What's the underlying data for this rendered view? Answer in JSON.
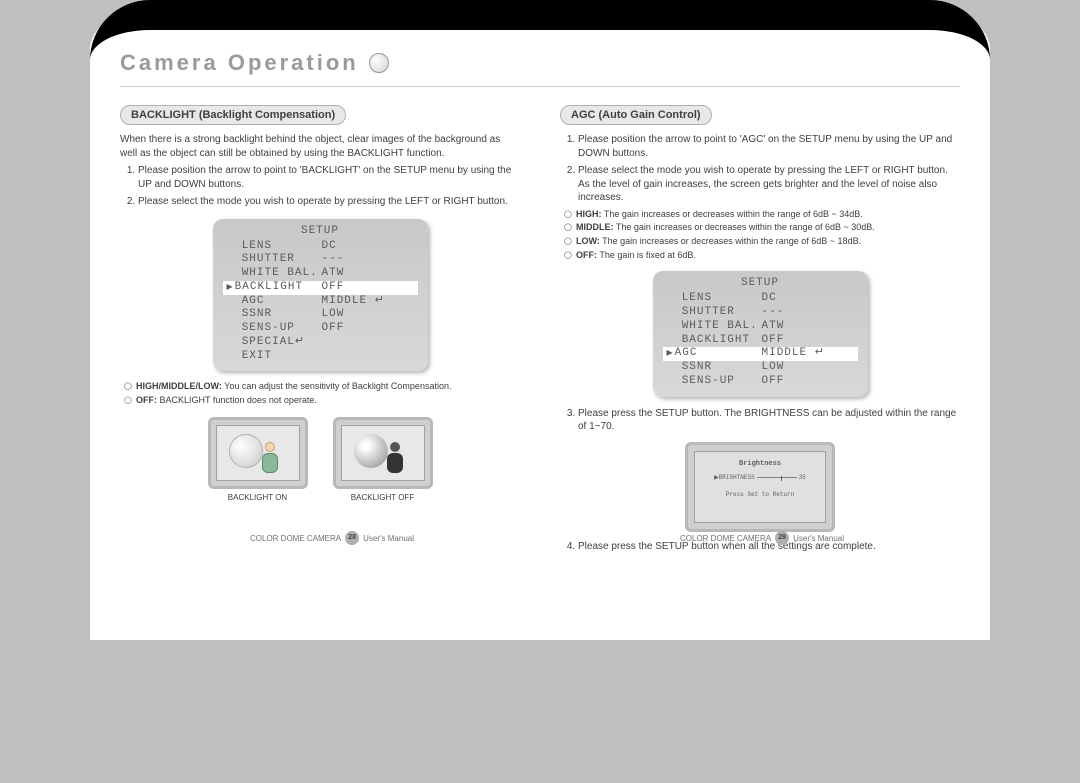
{
  "page_title": "Camera Operation",
  "left": {
    "section_header": "BACKLIGHT (Backlight Compensation)",
    "intro": "When there is a strong backlight behind the object, clear images of the background as well as the object can still be obtained by using the BACKLIGHT function.",
    "steps": [
      "Please position the arrow to point to 'BACKLIGHT' on the SETUP menu by using the UP and DOWN buttons.",
      "Please select the mode you wish to operate by pressing the LEFT or RIGHT button."
    ],
    "setup": {
      "title": "SETUP",
      "rows": [
        {
          "label": "LENS",
          "value": "DC",
          "hl": false
        },
        {
          "label": "SHUTTER",
          "value": "---",
          "hl": false
        },
        {
          "label": "WHITE BAL.",
          "value": "ATW",
          "hl": false
        },
        {
          "label": "BACKLIGHT",
          "value": "OFF",
          "hl": true
        },
        {
          "label": "AGC",
          "value": "MIDDLE ↵",
          "hl": false
        },
        {
          "label": "SSNR",
          "value": "LOW",
          "hl": false
        },
        {
          "label": "SENS-UP",
          "value": "OFF",
          "hl": false
        },
        {
          "label": "SPECIAL↵",
          "value": "",
          "hl": false
        },
        {
          "label": "EXIT",
          "value": "",
          "hl": false
        }
      ]
    },
    "bullets": [
      {
        "bold": "HIGH/MIDDLE/LOW:",
        "text": " You can adjust the sensitivity of Backlight Compensation."
      },
      {
        "bold": "OFF:",
        "text": " BACKLIGHT function does not operate."
      }
    ],
    "preview_on": "BACKLIGHT ON",
    "preview_off": "BACKLIGHT OFF",
    "footer_product": "COLOR DOME CAMERA",
    "footer_page": "28",
    "footer_label": "User's Manual"
  },
  "right": {
    "section_header": "AGC (Auto Gain Control)",
    "steps_a": [
      "Please position the arrow to point to 'AGC' on the SETUP menu by using the UP and DOWN buttons.",
      "Please select the mode you wish to operate by pressing the LEFT or RIGHT button.  As the level of gain increases, the screen gets brighter and the level of noise also increases."
    ],
    "bullets": [
      {
        "bold": "HIGH:",
        "text": " The gain increases or decreases within the range of  6dB ~  34dB."
      },
      {
        "bold": "MIDDLE:",
        "text": " The gain increases or decreases within the range of  6dB ~  30dB."
      },
      {
        "bold": "LOW:",
        "text": " The gain increases or decreases within the range of  6dB ~  18dB."
      },
      {
        "bold": "OFF:",
        "text": " The gain is fixed at 6dB."
      }
    ],
    "setup": {
      "title": "SETUP",
      "rows": [
        {
          "label": "LENS",
          "value": "DC",
          "hl": false
        },
        {
          "label": "SHUTTER",
          "value": "---",
          "hl": false
        },
        {
          "label": "WHITE BAL.",
          "value": "ATW",
          "hl": false
        },
        {
          "label": "BACKLIGHT",
          "value": "OFF",
          "hl": false
        },
        {
          "label": "AGC",
          "value": "MIDDLE ↵",
          "hl": true
        },
        {
          "label": "SSNR",
          "value": "LOW",
          "hl": false
        },
        {
          "label": "SENS-UP",
          "value": "OFF",
          "hl": false
        }
      ]
    },
    "step3": "Please press the SETUP button.  The BRIGHTNESS can be adjusted within the range of 1~70.",
    "brightness": {
      "title": "Brightness",
      "label": "▶BRIGHTNESS",
      "value": "35",
      "footer": "Press Set to Return"
    },
    "step4": "Please press the SETUP button when all the settings are complete.",
    "footer_product": "COLOR DOME CAMERA",
    "footer_page": "29",
    "footer_label": "User's Manual"
  }
}
